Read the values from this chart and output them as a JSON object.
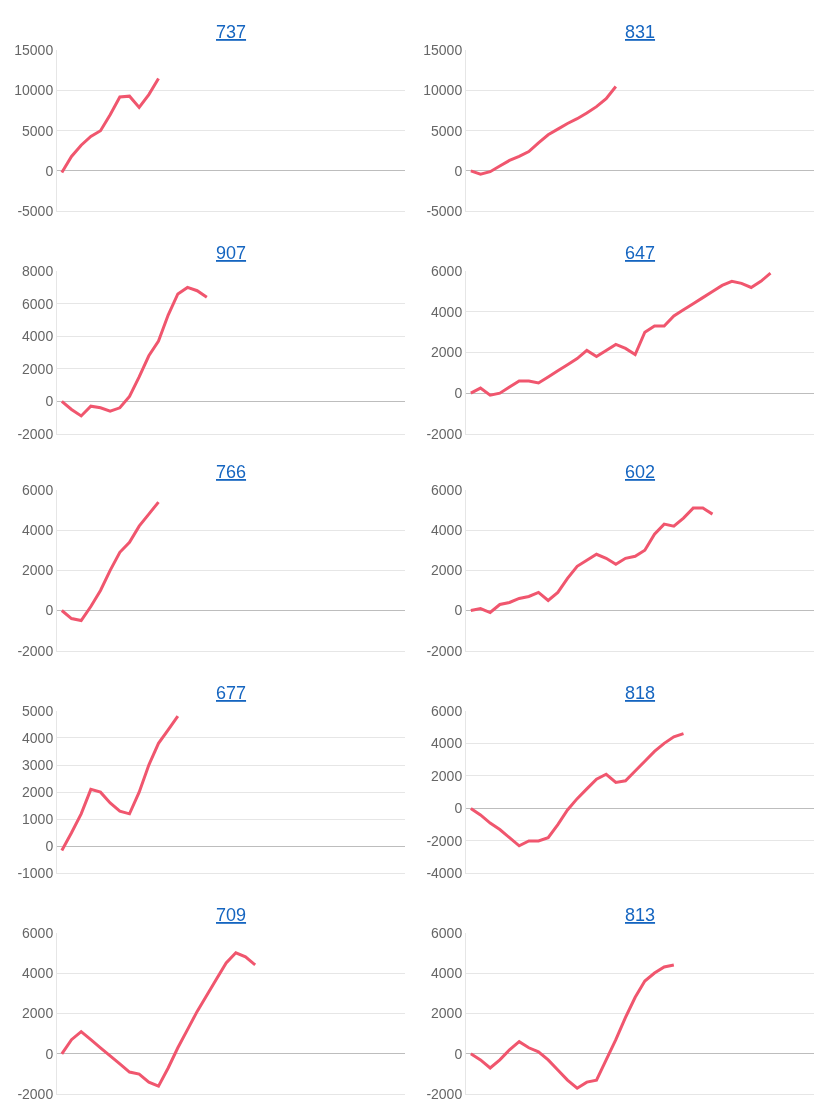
{
  "chart_data": [
    {
      "type": "line",
      "title": "737",
      "categories": [
        null,
        null,
        null,
        null,
        null,
        null,
        null,
        null,
        null,
        null,
        null,
        null,
        null,
        null,
        null,
        null,
        null,
        null,
        null,
        null,
        null,
        null,
        null,
        null,
        null,
        null,
        null,
        null,
        null,
        null,
        null,
        null,
        null,
        null,
        null,
        null
      ],
      "series": [
        {
          "color": "#f0566e",
          "values": [
            -200,
            1800,
            3200,
            4300,
            5000,
            7000,
            9200,
            9300,
            7900,
            9500,
            11500,
            null,
            null,
            null,
            null,
            null,
            null,
            null,
            null,
            null,
            null,
            null,
            null,
            null,
            null,
            null,
            null,
            null,
            null,
            null,
            null,
            null,
            null,
            null,
            null,
            null
          ]
        }
      ],
      "ylim": [
        -5000,
        15000
      ],
      "yticks": [
        -5000,
        0,
        5000,
        10000,
        15000
      ],
      "grid": "y",
      "tick_labels": "y"
    },
    {
      "type": "line",
      "title": "831",
      "categories": [
        null,
        null,
        null,
        null,
        null,
        null,
        null,
        null,
        null,
        null,
        null,
        null,
        null,
        null,
        null,
        null,
        null,
        null,
        null,
        null,
        null,
        null,
        null,
        null,
        null,
        null,
        null,
        null,
        null,
        null,
        null,
        null,
        null,
        null,
        null,
        null
      ],
      "series": [
        {
          "color": "#f0566e",
          "values": [
            0,
            -400,
            -100,
            600,
            1300,
            1800,
            2400,
            3500,
            4500,
            5200,
            5900,
            6500,
            7200,
            8000,
            9000,
            10500,
            null,
            null,
            null,
            null,
            null,
            null,
            null,
            null,
            null,
            null,
            null,
            null,
            null,
            null,
            null,
            null,
            null,
            null,
            null,
            null
          ]
        }
      ],
      "ylim": [
        -5000,
        15000
      ],
      "yticks": [
        -5000,
        0,
        5000,
        10000,
        15000
      ],
      "grid": "y",
      "tick_labels": "y"
    },
    {
      "type": "line",
      "title": "907",
      "categories": [
        null,
        null,
        null,
        null,
        null,
        null,
        null,
        null,
        null,
        null,
        null,
        null,
        null,
        null,
        null,
        null,
        null,
        null,
        null,
        null,
        null,
        null,
        null,
        null,
        null,
        null,
        null,
        null,
        null,
        null,
        null,
        null,
        null,
        null,
        null,
        null
      ],
      "series": [
        {
          "color": "#f0566e",
          "values": [
            0,
            -500,
            -900,
            -300,
            -400,
            -600,
            -400,
            300,
            1500,
            2800,
            3700,
            5300,
            6600,
            7000,
            6800,
            6400,
            null,
            null,
            null,
            null,
            null,
            null,
            null,
            null,
            null,
            null,
            null,
            null,
            null,
            null,
            null,
            null,
            null,
            null,
            null,
            null
          ]
        }
      ],
      "ylim": [
        -2000,
        8000
      ],
      "yticks": [
        -2000,
        0,
        2000,
        4000,
        6000,
        8000
      ],
      "grid": "y",
      "tick_labels": "y"
    },
    {
      "type": "line",
      "title": "647",
      "categories": [
        null,
        null,
        null,
        null,
        null,
        null,
        null,
        null,
        null,
        null,
        null,
        null,
        null,
        null,
        null,
        null,
        null,
        null,
        null,
        null,
        null,
        null,
        null,
        null,
        null,
        null,
        null,
        null,
        null,
        null,
        null,
        null,
        null,
        null,
        null,
        null
      ],
      "series": [
        {
          "color": "#f0566e",
          "values": [
            0,
            250,
            -100,
            0,
            300,
            600,
            600,
            500,
            800,
            1100,
            1400,
            1700,
            2100,
            1800,
            2100,
            2400,
            2200,
            1900,
            3000,
            3300,
            3300,
            3800,
            4100,
            4400,
            4700,
            5000,
            5300,
            5500,
            5400,
            5200,
            5500,
            5900,
            null,
            null,
            null,
            null
          ]
        }
      ],
      "ylim": [
        -2000,
        6000
      ],
      "yticks": [
        -2000,
        0,
        2000,
        4000,
        6000
      ],
      "grid": "y",
      "tick_labels": "y"
    },
    {
      "type": "line",
      "title": "766",
      "categories": [
        null,
        null,
        null,
        null,
        null,
        null,
        null,
        null,
        null,
        null,
        null,
        null,
        null,
        null,
        null,
        null,
        null,
        null,
        null,
        null,
        null,
        null,
        null,
        null,
        null,
        null,
        null,
        null,
        null,
        null,
        null,
        null,
        null,
        null,
        null,
        null
      ],
      "series": [
        {
          "color": "#f0566e",
          "values": [
            0,
            -400,
            -500,
            200,
            1000,
            2000,
            2900,
            3400,
            4200,
            4800,
            5400,
            null,
            null,
            null,
            null,
            null,
            null,
            null,
            null,
            null,
            null,
            null,
            null,
            null,
            null,
            null,
            null,
            null,
            null,
            null,
            null,
            null,
            null,
            null,
            null,
            null
          ]
        }
      ],
      "ylim": [
        -2000,
        6000
      ],
      "yticks": [
        -2000,
        0,
        2000,
        4000,
        6000
      ],
      "grid": "y",
      "tick_labels": "y"
    },
    {
      "type": "line",
      "title": "602",
      "categories": [
        null,
        null,
        null,
        null,
        null,
        null,
        null,
        null,
        null,
        null,
        null,
        null,
        null,
        null,
        null,
        null,
        null,
        null,
        null,
        null,
        null,
        null,
        null,
        null,
        null,
        null,
        null,
        null,
        null,
        null,
        null,
        null,
        null,
        null,
        null,
        null
      ],
      "series": [
        {
          "color": "#f0566e",
          "values": [
            0,
            100,
            -100,
            300,
            400,
            600,
            700,
            900,
            500,
            900,
            1600,
            2200,
            2500,
            2800,
            2600,
            2300,
            2600,
            2700,
            3000,
            3800,
            4300,
            4200,
            4600,
            5100,
            5100,
            4800,
            null,
            null,
            null,
            null,
            null,
            null,
            null,
            null,
            null,
            null
          ]
        }
      ],
      "ylim": [
        -2000,
        6000
      ],
      "yticks": [
        -2000,
        0,
        2000,
        4000,
        6000
      ],
      "grid": "y",
      "tick_labels": "y"
    },
    {
      "type": "line",
      "title": "677",
      "categories": [
        null,
        null,
        null,
        null,
        null,
        null,
        null,
        null,
        null,
        null,
        null,
        null,
        null,
        null,
        null,
        null,
        null,
        null,
        null,
        null,
        null,
        null,
        null,
        null,
        null,
        null,
        null,
        null,
        null,
        null,
        null,
        null,
        null,
        null,
        null,
        null
      ],
      "series": [
        {
          "color": "#f0566e",
          "values": [
            -150,
            500,
            1200,
            2100,
            2000,
            1600,
            1300,
            1200,
            2000,
            3000,
            3800,
            4300,
            4800,
            null,
            null,
            null,
            null,
            null,
            null,
            null,
            null,
            null,
            null,
            null,
            null,
            null,
            null,
            null,
            null,
            null,
            null,
            null,
            null,
            null,
            null,
            null
          ]
        }
      ],
      "ylim": [
        -1000,
        5000
      ],
      "yticks": [
        -1000,
        0,
        1000,
        2000,
        3000,
        4000,
        5000
      ],
      "grid": "y",
      "tick_labels": "y"
    },
    {
      "type": "line",
      "title": "818",
      "categories": [
        null,
        null,
        null,
        null,
        null,
        null,
        null,
        null,
        null,
        null,
        null,
        null,
        null,
        null,
        null,
        null,
        null,
        null,
        null,
        null,
        null,
        null,
        null,
        null,
        null,
        null,
        null,
        null,
        null,
        null,
        null,
        null,
        null,
        null,
        null,
        null
      ],
      "series": [
        {
          "color": "#f0566e",
          "values": [
            0,
            -400,
            -900,
            -1300,
            -1800,
            -2300,
            -2000,
            -2000,
            -1800,
            -1000,
            -100,
            600,
            1200,
            1800,
            2100,
            1600,
            1700,
            2300,
            2900,
            3500,
            4000,
            4400,
            4600,
            null,
            null,
            null,
            null,
            null,
            null,
            null,
            null,
            null,
            null,
            null,
            null,
            null
          ]
        }
      ],
      "ylim": [
        -4000,
        6000
      ],
      "yticks": [
        -4000,
        -2000,
        0,
        2000,
        4000,
        6000
      ],
      "grid": "y",
      "tick_labels": "y"
    },
    {
      "type": "line",
      "title": "709",
      "categories": [
        null,
        null,
        null,
        null,
        null,
        null,
        null,
        null,
        null,
        null,
        null,
        null,
        null,
        null,
        null,
        null,
        null,
        null,
        null,
        null,
        null,
        null,
        null,
        null,
        null,
        null,
        null,
        null,
        null,
        null,
        null,
        null,
        null,
        null,
        null,
        null
      ],
      "series": [
        {
          "color": "#f0566e",
          "values": [
            0,
            700,
            1100,
            700,
            300,
            -100,
            -500,
            -900,
            -1000,
            -1400,
            -1600,
            -700,
            300,
            1200,
            2100,
            2900,
            3700,
            4500,
            5000,
            4800,
            4400,
            null,
            null,
            null,
            null,
            null,
            null,
            null,
            null,
            null,
            null,
            null,
            null,
            null,
            null,
            null
          ]
        }
      ],
      "ylim": [
        -2000,
        6000
      ],
      "yticks": [
        -2000,
        0,
        2000,
        4000,
        6000
      ],
      "grid": "y",
      "tick_labels": "y"
    },
    {
      "type": "line",
      "title": "813",
      "categories": [
        null,
        null,
        null,
        null,
        null,
        null,
        null,
        null,
        null,
        null,
        null,
        null,
        null,
        null,
        null,
        null,
        null,
        null,
        null,
        null,
        null,
        null,
        null,
        null,
        null,
        null,
        null,
        null,
        null,
        null,
        null,
        null,
        null,
        null,
        null,
        null
      ],
      "series": [
        {
          "color": "#f0566e",
          "values": [
            0,
            -300,
            -700,
            -300,
            200,
            600,
            300,
            100,
            -300,
            -800,
            -1300,
            -1700,
            -1400,
            -1300,
            -300,
            700,
            1800,
            2800,
            3600,
            4000,
            4300,
            4400,
            null,
            null,
            null,
            null,
            null,
            null,
            null,
            null,
            null,
            null,
            null,
            null,
            null,
            null
          ]
        }
      ],
      "ylim": [
        -2000,
        6000
      ],
      "yticks": [
        -2000,
        0,
        2000,
        4000,
        6000
      ],
      "grid": "y",
      "tick_labels": "y"
    }
  ]
}
